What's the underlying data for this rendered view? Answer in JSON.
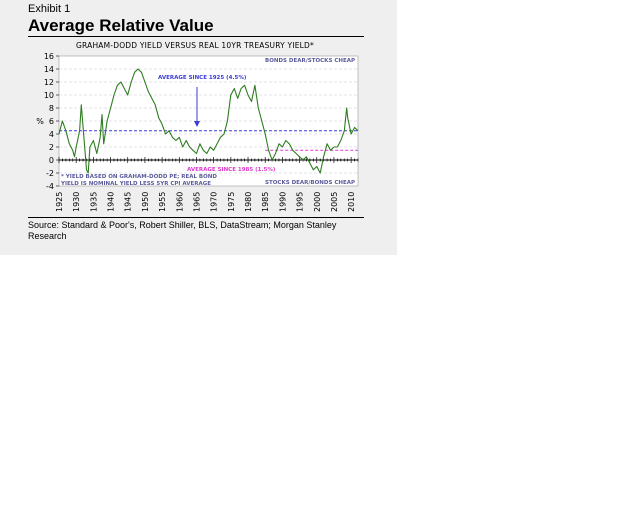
{
  "header": {
    "exhibit": "Exhibit 1",
    "title": "Average Relative Value"
  },
  "footer": {
    "source": "Source: Standard & Poor's, Robert Shiller, BLS, DataStream; Morgan Stanley Research"
  },
  "colors": {
    "panel_bg": "#efefef",
    "plot_bg": "#ffffff",
    "series": "#2e7d20",
    "avg_1925": "#3b3bd6",
    "avg_1985": "#e03ad0",
    "annotation_text": "#5a5a9a"
  },
  "chart_data": {
    "type": "line",
    "title": "GRAHAM-DODD YIELD VERSUS REAL 10YR TREASURY YIELD*",
    "ylabel": "%",
    "xlabel": "",
    "ylim": [
      -4,
      16
    ],
    "xlim": [
      1925,
      2012
    ],
    "grid": "horizontal dashed",
    "y_ticks": [
      -4,
      -2,
      0,
      2,
      4,
      6,
      8,
      10,
      12,
      14,
      16
    ],
    "x_ticks": [
      1925,
      1930,
      1935,
      1940,
      1945,
      1950,
      1955,
      1960,
      1965,
      1970,
      1975,
      1980,
      1985,
      1990,
      1995,
      2000,
      2005,
      2010
    ],
    "series": [
      {
        "x": [
          1925,
          1926,
          1927,
          1928,
          1929,
          1929.5,
          1930,
          1931,
          1931.5,
          1932,
          1933,
          1933.5,
          1934,
          1935,
          1936,
          1937,
          1937.5,
          1938,
          1939,
          1940,
          1941,
          1942,
          1943,
          1944,
          1945,
          1946,
          1947,
          1948,
          1949,
          1950,
          1951,
          1952,
          1953,
          1954,
          1955,
          1956,
          1957,
          1958,
          1959,
          1960,
          1961,
          1962,
          1963,
          1964,
          1965,
          1966,
          1967,
          1968,
          1969,
          1970,
          1971,
          1972,
          1973,
          1974,
          1975,
          1976,
          1977,
          1978,
          1979,
          1980,
          1981,
          1982,
          1983,
          1984,
          1985,
          1986,
          1987,
          1988,
          1989,
          1990,
          1991,
          1992,
          1993,
          1994,
          1995,
          1996,
          1997,
          1998,
          1999,
          2000,
          2001,
          2002,
          2003,
          2004,
          2005,
          2006,
          2007,
          2008,
          2008.7,
          2009,
          2010,
          2011,
          2012
        ],
        "values": [
          4.0,
          6.0,
          4.5,
          2.5,
          1.5,
          0.5,
          2.0,
          4.5,
          8.5,
          5.0,
          -1.5,
          -2.0,
          2.0,
          3.0,
          1.0,
          3.5,
          7.0,
          2.5,
          6.0,
          8.0,
          10.0,
          11.5,
          12.0,
          11.0,
          10.0,
          12.0,
          13.5,
          14.0,
          13.5,
          12.0,
          10.5,
          9.5,
          8.5,
          6.5,
          5.5,
          4.0,
          4.5,
          3.5,
          3.0,
          3.5,
          2.0,
          3.0,
          2.0,
          1.5,
          1.0,
          2.5,
          1.5,
          1.0,
          2.0,
          1.5,
          2.5,
          3.5,
          4.0,
          6.0,
          10.0,
          11.0,
          9.5,
          11.0,
          11.5,
          10.0,
          9.0,
          11.5,
          8.0,
          6.0,
          4.0,
          1.5,
          0.0,
          1.0,
          2.5,
          2.0,
          3.0,
          2.5,
          1.5,
          1.0,
          0.5,
          0.0,
          0.5,
          -0.5,
          -1.5,
          -1.0,
          -2.0,
          0.5,
          2.5,
          1.5,
          2.0,
          2.0,
          3.0,
          4.5,
          8.0,
          6.5,
          4.0,
          5.0,
          4.5
        ]
      }
    ],
    "reference_lines": [
      {
        "label": "AVERAGE SINCE 1925 (4.5%)",
        "y": 4.5,
        "from": 1925,
        "to": 2012,
        "style": "dashed",
        "color": "#3b3bd6"
      },
      {
        "label": "AVERAGE SINCE 1985 (1.5%)",
        "y": 1.5,
        "from": 1985,
        "to": 2012,
        "style": "dashed",
        "color": "#e03ad0"
      }
    ],
    "annotations": {
      "top_right": "BONDS DEAR/STOCKS CHEAP",
      "bottom_right": "STOCKS DEAR/BONDS CHEAP",
      "note_line1": "* YIELD BASED ON GRAHAM-DODD PE;  REAL BOND",
      "note_line2": "YIELD IS NOMINAL YIELD LESS 5YR CPI AVERAGE"
    }
  }
}
